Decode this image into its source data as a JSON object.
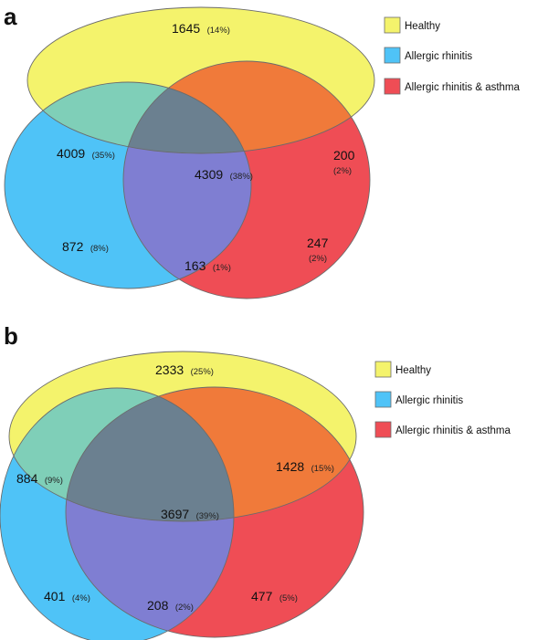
{
  "colors": {
    "healthy": "#f4f36c",
    "allergic_rhinitis": "#4fc3f7",
    "allergic_rhinitis_asthma": "#ef4d55",
    "outline": "#6b6b6b"
  },
  "legend": [
    {
      "label": "Healthy",
      "color": "#f4f36c"
    },
    {
      "label": "Allergic rhinitis",
      "color": "#4fc3f7"
    },
    {
      "label": "Allergic rhinitis & asthma",
      "color": "#ef4d55"
    }
  ],
  "panels": [
    {
      "letter": "a",
      "regions": {
        "healthy_only": {
          "count": "1645",
          "percent": "(14%)"
        },
        "healthy_rhinitis": {
          "count": "4009",
          "percent": "(35%)"
        },
        "all_three": {
          "count": "4309",
          "percent": "(38%)"
        },
        "healthy_asthma": {
          "count": "200",
          "percent": "(2%)"
        },
        "rhinitis_only": {
          "count": "872",
          "percent": "(8%)"
        },
        "rhinitis_asthma": {
          "count": "163",
          "percent": "(1%)"
        },
        "asthma_only": {
          "count": "247",
          "percent": "(2%)"
        }
      }
    },
    {
      "letter": "b",
      "regions": {
        "healthy_only": {
          "count": "2333",
          "percent": "(25%)"
        },
        "healthy_rhinitis": {
          "count": "884",
          "percent": "(9%)"
        },
        "all_three": {
          "count": "3697",
          "percent": "(39%)"
        },
        "healthy_asthma": {
          "count": "1428",
          "percent": "(15%)"
        },
        "rhinitis_only": {
          "count": "401",
          "percent": "(4%)"
        },
        "rhinitis_asthma": {
          "count": "208",
          "percent": "(2%)"
        },
        "asthma_only": {
          "count": "477",
          "percent": "(5%)"
        }
      }
    }
  ]
}
